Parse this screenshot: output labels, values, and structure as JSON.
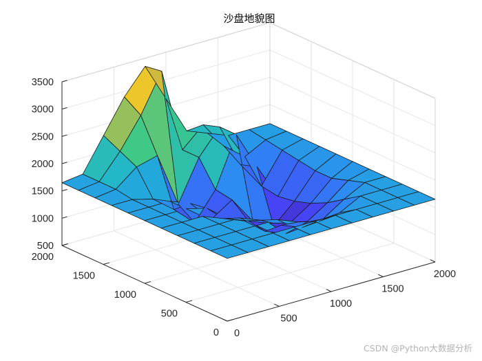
{
  "chart_data": {
    "type": "surface",
    "title": "沙盘地貌图",
    "x_ticks": [
      "0",
      "500",
      "1000",
      "1500",
      "2000"
    ],
    "y_ticks": [
      "0",
      "500",
      "1000",
      "1500",
      "2000"
    ],
    "z_ticks": [
      "500",
      "1000",
      "1500",
      "2000",
      "2500",
      "3000",
      "3500"
    ],
    "xlim": [
      0,
      2000
    ],
    "ylim": [
      0,
      2000
    ],
    "zlim": [
      500,
      3500
    ],
    "grid": true,
    "colormap": [
      "#3e26a8",
      "#4743f6",
      "#2d87f5",
      "#20b4d2",
      "#3bc889",
      "#b4bd4c",
      "#e9b830",
      "#f9fb14"
    ],
    "x": [
      0,
      200,
      400,
      600,
      800,
      1000,
      1200,
      1400,
      1600,
      1800,
      2000
    ],
    "y": [
      0,
      200,
      400,
      600,
      800,
      1000,
      1200,
      1400,
      1600,
      1800,
      2000
    ],
    "z": [
      [
        1650,
        1650,
        1650,
        1650,
        1650,
        1650,
        1650,
        1650,
        1650,
        1650,
        1650
      ],
      [
        1650,
        1650,
        1650,
        1650,
        1650,
        1650,
        1650,
        1650,
        1650,
        1650,
        1650
      ],
      [
        1650,
        1650,
        1650,
        1650,
        1650,
        1500,
        1400,
        1450,
        1650,
        1650,
        1650
      ],
      [
        1650,
        1650,
        1650,
        1650,
        1500,
        1300,
        1150,
        1200,
        1450,
        1650,
        1650
      ],
      [
        1650,
        1650,
        1650,
        1500,
        1350,
        1050,
        900,
        1000,
        1250,
        1550,
        1650
      ],
      [
        1650,
        1650,
        1650,
        1550,
        1250,
        1100,
        950,
        850,
        1100,
        1450,
        1650
      ],
      [
        1650,
        1650,
        1650,
        1500,
        1100,
        1350,
        850,
        650,
        1000,
        1450,
        1650
      ],
      [
        1650,
        1650,
        1550,
        1250,
        900,
        1400,
        2300,
        1600,
        950,
        1500,
        1650
      ],
      [
        1650,
        1700,
        2000,
        2100,
        1100,
        1850,
        2300,
        1500,
        1000,
        1550,
        1650
      ],
      [
        1650,
        1700,
        2150,
        2700,
        3400,
        1850,
        2200,
        1700,
        1400,
        1600,
        1650
      ],
      [
        1650,
        1700,
        2300,
        2900,
        3350,
        2650,
        1950,
        1800,
        1650,
        1650,
        1650
      ]
    ]
  },
  "watermark": "CSDN @Python大数据分析"
}
